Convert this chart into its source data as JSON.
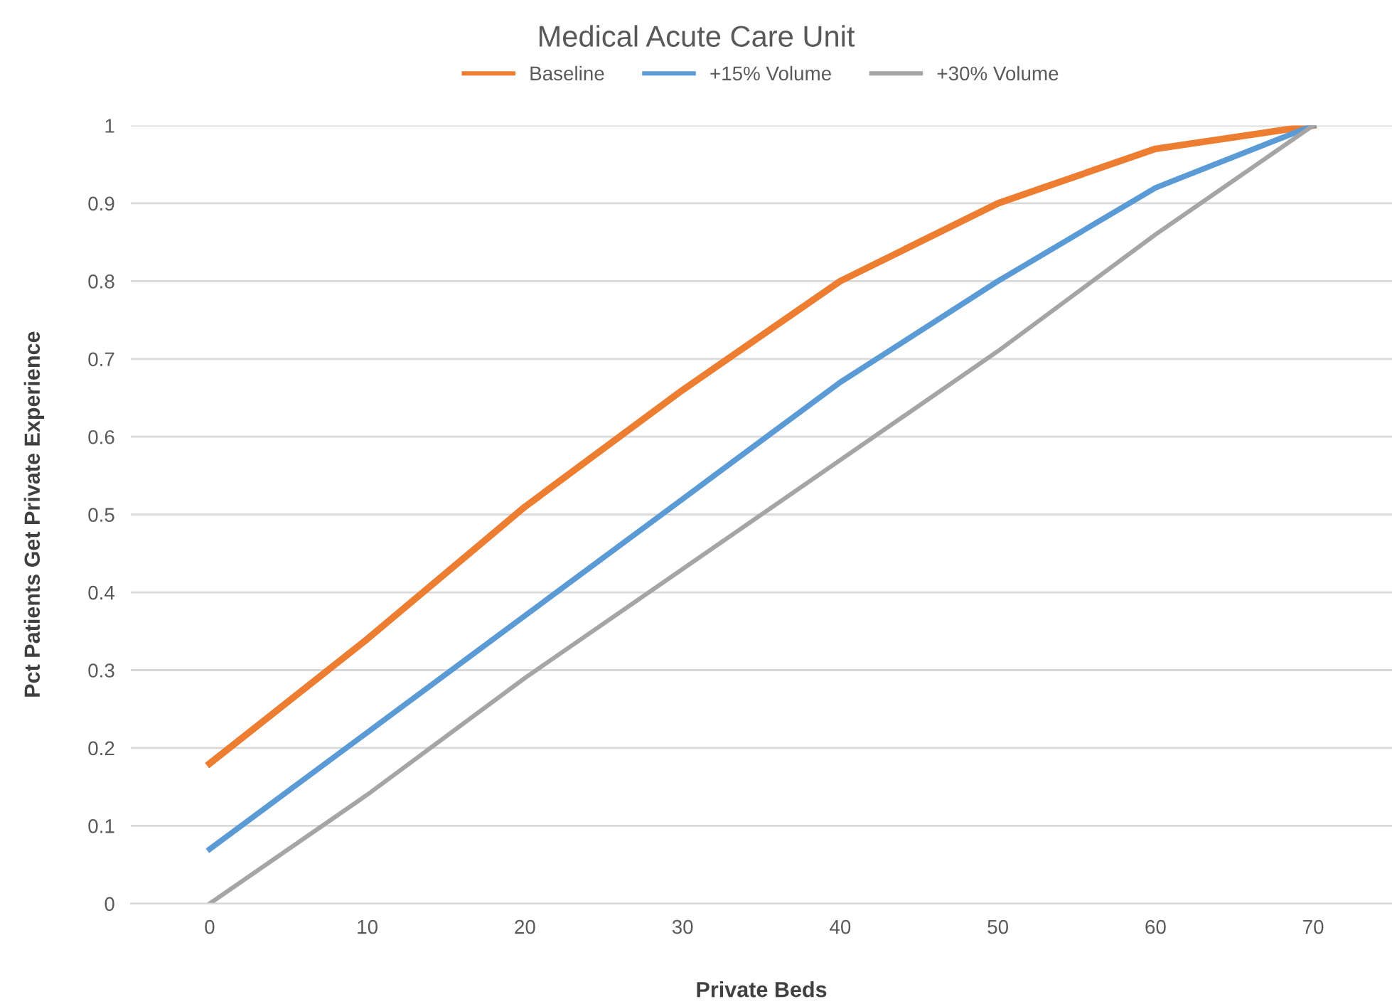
{
  "chart_data": {
    "type": "line",
    "title": "Medical Acute Care Unit",
    "xlabel": "Private Beds",
    "ylabel": "Pct Patients Get Private Experience",
    "categories": [
      "0",
      "10",
      "20",
      "30",
      "40",
      "50",
      "60",
      "70"
    ],
    "series": [
      {
        "name": "Baseline",
        "color": "#ed7d31",
        "values": [
          0.18,
          0.34,
          0.51,
          0.66,
          0.8,
          0.9,
          0.97,
          1
        ]
      },
      {
        "name": "+15% Volume",
        "color": "#5b9bd5",
        "values": [
          0.07,
          0.22,
          0.37,
          0.52,
          0.67,
          0.8,
          0.92,
          1
        ]
      },
      {
        "name": "+30% Volume",
        "color": "#a5a5a5",
        "values": [
          0,
          0.14,
          0.29,
          0.43,
          0.57,
          0.71,
          0.86,
          1
        ]
      }
    ],
    "ylim": [
      0,
      1
    ],
    "yticks": [
      0,
      0.1,
      0.2,
      0.3,
      0.4,
      0.5,
      0.6,
      0.7,
      0.8,
      0.9,
      1
    ],
    "grid": "y",
    "legend": "top",
    "marker": "none",
    "line_style": "solid"
  }
}
